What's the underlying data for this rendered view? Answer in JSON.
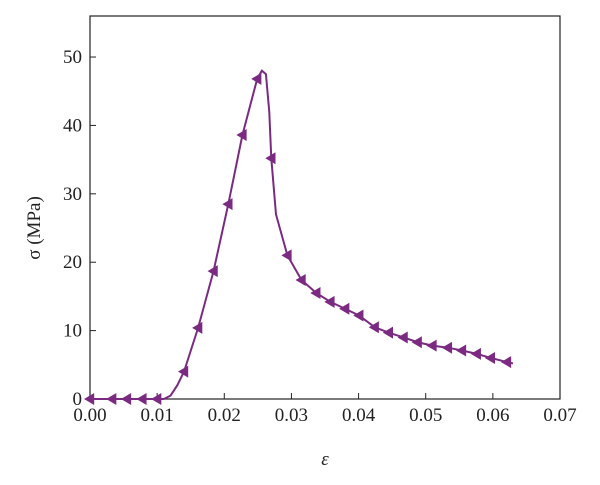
{
  "chart_data": {
    "type": "line",
    "xlabel": "ε",
    "ylabel": "σ (MPa)",
    "xlim": [
      0,
      0.07
    ],
    "ylim": [
      0,
      56
    ],
    "xticks": [
      {
        "value": 0,
        "label": "0.00"
      },
      {
        "value": 0.01,
        "label": "0.01"
      },
      {
        "value": 0.02,
        "label": "0.02"
      },
      {
        "value": 0.03,
        "label": "0.03"
      },
      {
        "value": 0.04,
        "label": "0.04"
      },
      {
        "value": 0.05,
        "label": "0.05"
      },
      {
        "value": 0.06,
        "label": "0.06"
      },
      {
        "value": 0.07,
        "label": "0.07"
      }
    ],
    "yticks": [
      0,
      10,
      20,
      30,
      40,
      50
    ],
    "color": "#7b2a82",
    "series": [
      {
        "marker": "none",
        "x": [
          0,
          0.011,
          0.012,
          0.013,
          0.014,
          0.0161,
          0.0184,
          0.0206,
          0.0227,
          0.0249,
          0.0256,
          0.0262,
          0.0267,
          0.027,
          0.0277,
          0.0294,
          0.0315,
          0.0337,
          0.0358,
          0.038,
          0.0401,
          0.0424,
          0.0445,
          0.0467,
          0.0488,
          0.051,
          0.0533,
          0.0554,
          0.0576,
          0.0597,
          0.0621,
          0.063
        ],
        "values": [
          0,
          0,
          0.5,
          2,
          4,
          10.4,
          18.7,
          28.5,
          38.6,
          46.8,
          48,
          47.5,
          42,
          35.2,
          27,
          21,
          17.4,
          15.5,
          14.2,
          13.2,
          12.2,
          10.5,
          9.7,
          9.0,
          8.3,
          7.8,
          7.5,
          7.1,
          6.6,
          6.0,
          5.4,
          5.2
        ]
      },
      {
        "marker": "triangle-left",
        "x": [
          0,
          0.0033,
          0.0055,
          0.0078,
          0.01,
          0.014,
          0.0161,
          0.0184,
          0.0206,
          0.0227,
          0.0249,
          0.027,
          0.0294,
          0.0315,
          0.0337,
          0.0358,
          0.038,
          0.0401,
          0.0424,
          0.0445,
          0.0467,
          0.0488,
          0.051,
          0.0533,
          0.0554,
          0.0576,
          0.0597,
          0.0621
        ],
        "values": [
          0,
          0,
          0,
          0,
          0,
          4,
          10.4,
          18.7,
          28.5,
          38.6,
          46.8,
          35.2,
          21,
          17.4,
          15.5,
          14.2,
          13.2,
          12.2,
          10.5,
          9.7,
          9.0,
          8.3,
          7.8,
          7.5,
          7.1,
          6.6,
          6.0,
          5.4
        ]
      }
    ]
  }
}
